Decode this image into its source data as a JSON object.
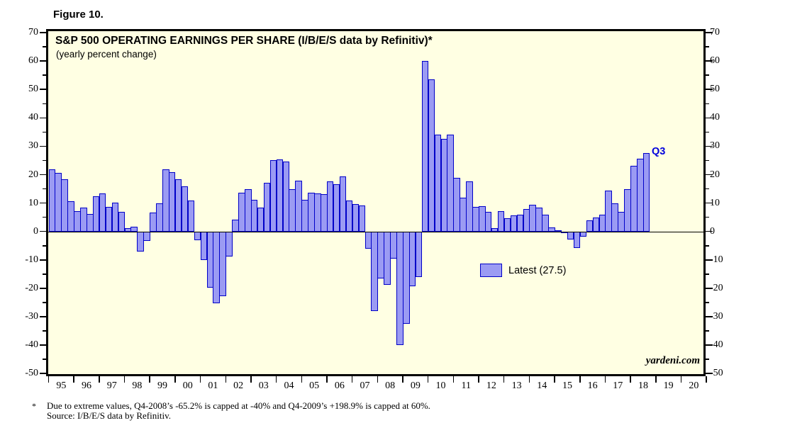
{
  "figure_label": "Figure 10.",
  "chart": {
    "title": "S&P 500 OPERATING EARNINGS PER SHARE (I/B/E/S data by Refinitiv)*",
    "subtitle": "(yearly percent change)",
    "legend": {
      "label": "Latest (27.5)",
      "latest_value": 27.5
    },
    "latest_quarter_label": "Q3",
    "watermark": "yardeni.com",
    "colors": {
      "plot_background": "#FFFFE3",
      "bar_fill": "#9B9BF3",
      "bar_border": "#0000C8",
      "latest_label_blue": "#0000DD",
      "frame": "#000000"
    }
  },
  "chart_data": {
    "type": "bar",
    "x_unit": "quarter",
    "start_quarter": "1995Q1",
    "end_quarter": "2018Q3",
    "values": [
      21.8,
      20.5,
      18.3,
      10.6,
      7.1,
      8.5,
      6.1,
      12.5,
      13.5,
      8.6,
      10.1,
      7.0,
      1.1,
      1.6,
      -7.1,
      -3.3,
      6.6,
      9.8,
      21.8,
      20.8,
      18.5,
      15.8,
      10.8,
      -3.1,
      -10.0,
      -19.7,
      -25.2,
      -22.8,
      -8.7,
      4.2,
      13.7,
      14.8,
      11.2,
      8.5,
      17.2,
      25.1,
      25.4,
      24.5,
      14.8,
      17.9,
      11.2,
      13.7,
      13.5,
      13.1,
      17.6,
      16.6,
      19.5,
      11.0,
      9.6,
      9.1,
      -6.0,
      -28.1,
      -16.6,
      -18.9,
      -9.6,
      -40.0,
      -32.6,
      -19.4,
      -16.0,
      60.0,
      53.6,
      34.1,
      32.5,
      34.1,
      19.0,
      12.0,
      17.7,
      8.6,
      8.8,
      6.9,
      1.1,
      7.2,
      4.6,
      5.7,
      6.0,
      8.0,
      9.4,
      8.5,
      6.0,
      1.5,
      0.5,
      -0.3,
      -2.9,
      -5.8,
      -1.7,
      3.9,
      4.8,
      5.8,
      14.3,
      10.0,
      7.0,
      15.0,
      23.2,
      25.5,
      27.5
    ],
    "ylim": [
      -50,
      70
    ],
    "y_tick_values": [
      70,
      60,
      50,
      40,
      30,
      20,
      10,
      0,
      -10,
      -20,
      -30,
      -40,
      -50
    ],
    "y_tick_labels": [
      "70",
      "60",
      "50",
      "40",
      "30",
      "20",
      "10",
      "0",
      "-10",
      "-20",
      "-30",
      "-40",
      "-50"
    ],
    "y_minor_step": 5,
    "x_year_labels": [
      "95",
      "96",
      "97",
      "98",
      "99",
      "00",
      "01",
      "02",
      "03",
      "04",
      "05",
      "06",
      "07",
      "08",
      "09",
      "10",
      "11",
      "12",
      "13",
      "14",
      "15",
      "16",
      "17",
      "18",
      "19",
      "20"
    ],
    "grid": "off",
    "legend_position": "inside-middle-right",
    "annotations": [
      "Q3 label at last bar (27.5)"
    ],
    "capping_notes": [
      "Q4-2008 actual -65.2% capped at -40",
      "Q4-2009 actual +198.9% capped at 60"
    ]
  },
  "footnote": {
    "marker": "*",
    "line1": "Due to extreme values, Q4-2008’s -65.2% is capped at -40% and Q4-2009’s +198.9% is capped at 60%.",
    "line2": "Source: I/B/E/S data by Refinitiv."
  }
}
